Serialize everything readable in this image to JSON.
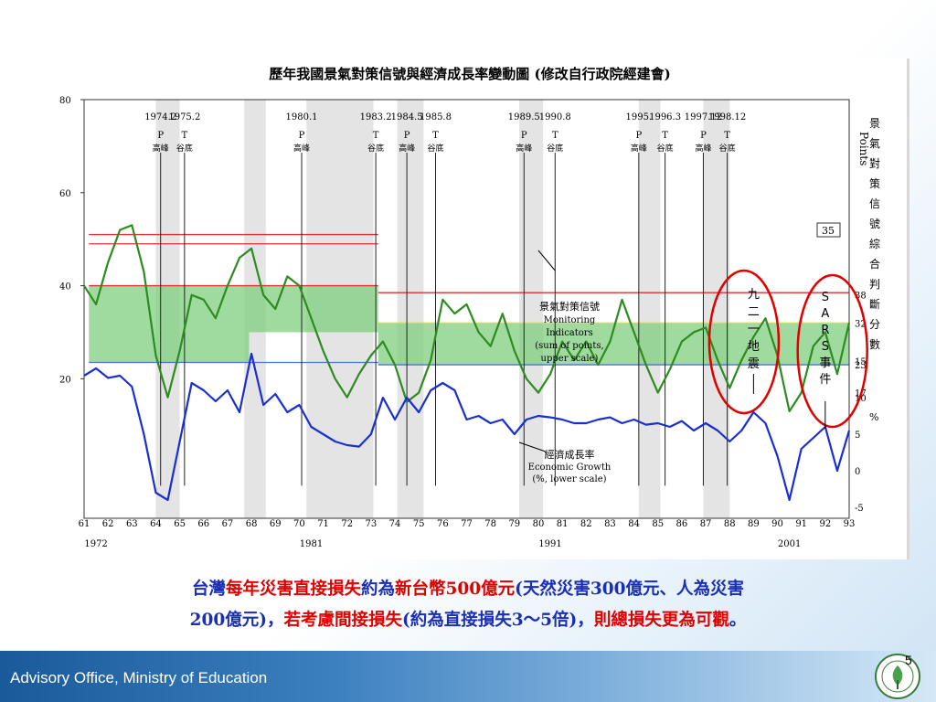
{
  "chart_data": {
    "type": "line",
    "title": "歷年我國景氣對策信號與經濟成長率變動圖",
    "title_note": "(修改自行政院經建會)",
    "x": [
      "61",
      "62",
      "63",
      "64",
      "65",
      "66",
      "67",
      "68",
      "69",
      "70",
      "71",
      "72",
      "73",
      "74",
      "75",
      "76",
      "77",
      "78",
      "79",
      "80",
      "81",
      "82",
      "83",
      "84",
      "85",
      "86",
      "87",
      "88",
      "89",
      "90",
      "91",
      "92",
      "93"
    ],
    "x_year_labels": [
      [
        "1972",
        61.5
      ],
      [
        "1981",
        70.5
      ],
      [
        "1991",
        80.5
      ],
      [
        "2001",
        90.5
      ]
    ],
    "left_axis_ticks": [
      "80",
      "60",
      "40",
      "20"
    ],
    "right_upper_ticks": [
      "38",
      "32",
      "23",
      "17"
    ],
    "right_lower_ticks": [
      "15",
      "10",
      "5",
      "0",
      "-5"
    ],
    "right_upper_label": "Points",
    "right_upper_vertical": "景氣對策信號綜合判斷分數",
    "right_lower_label": "%",
    "recessions": [
      [
        64.0,
        65.0
      ],
      [
        67.7,
        68.6
      ],
      [
        70.3,
        73.1
      ],
      [
        74.1,
        75.2
      ],
      [
        79.2,
        80.2
      ],
      [
        84.2,
        85.1
      ],
      [
        86.9,
        87.8
      ],
      [
        87.8,
        88.0
      ]
    ],
    "turning_points": [
      {
        "date": "1974.2",
        "type": "P",
        "label": "高峰",
        "x": 64.2
      },
      {
        "date": "1975.2",
        "type": "T",
        "label": "谷底",
        "x": 65.2
      },
      {
        "date": "1980.1",
        "type": "P",
        "label": "高峰",
        "x": 70.1
      },
      {
        "date": "1983.2",
        "type": "T",
        "label": "谷底",
        "x": 73.2
      },
      {
        "date": "1984.5",
        "type": "P",
        "label": "高峰",
        "x": 74.5
      },
      {
        "date": "1985.8",
        "type": "T",
        "label": "谷底",
        "x": 75.7
      },
      {
        "date": "1989.5",
        "type": "P",
        "label": "高峰",
        "x": 79.4
      },
      {
        "date": "1990.8",
        "type": "T",
        "label": "谷底",
        "x": 80.7
      },
      {
        "date": "1995.",
        "type": "P",
        "label": "高峰",
        "x": 84.2
      },
      {
        "date": "1996.3",
        "type": "T",
        "label": "谷底",
        "x": 85.3
      },
      {
        "date": "1997.12",
        "type": "P",
        "label": "高峰",
        "x": 86.9
      },
      {
        "date": "1998.12",
        "type": "T",
        "label": "谷底",
        "x": 87.9
      }
    ],
    "series": [
      {
        "name": "景氣對策信號 Monitoring Indicators (sum of points, upper scale)",
        "color": "#2e8b20",
        "points": [
          [
            61,
            40
          ],
          [
            61.5,
            36
          ],
          [
            62,
            45
          ],
          [
            62.5,
            52
          ],
          [
            63,
            53
          ],
          [
            63.5,
            43
          ],
          [
            64,
            25
          ],
          [
            64.5,
            16
          ],
          [
            65,
            26
          ],
          [
            65.5,
            38
          ],
          [
            66,
            37
          ],
          [
            66.5,
            33
          ],
          [
            67,
            40
          ],
          [
            67.5,
            46
          ],
          [
            68,
            48
          ],
          [
            68.5,
            38
          ],
          [
            69,
            35
          ],
          [
            69.5,
            42
          ],
          [
            70,
            40
          ],
          [
            70.5,
            33
          ],
          [
            71,
            26
          ],
          [
            71.5,
            20
          ],
          [
            72,
            16
          ],
          [
            72.5,
            21
          ],
          [
            73,
            25
          ],
          [
            73.5,
            28
          ],
          [
            74,
            23
          ],
          [
            74.5,
            15
          ],
          [
            75,
            17
          ],
          [
            75.5,
            24
          ],
          [
            76,
            37
          ],
          [
            76.5,
            34
          ],
          [
            77,
            36
          ],
          [
            77.5,
            30
          ],
          [
            78,
            27
          ],
          [
            78.5,
            34
          ],
          [
            79,
            26
          ],
          [
            79.5,
            20
          ],
          [
            80,
            17
          ],
          [
            80.5,
            21
          ],
          [
            81,
            28
          ],
          [
            81.5,
            24
          ],
          [
            82,
            28
          ],
          [
            82.5,
            23
          ],
          [
            83,
            28
          ],
          [
            83.5,
            37
          ],
          [
            84,
            30
          ],
          [
            84.5,
            23
          ],
          [
            85,
            17
          ],
          [
            85.5,
            22
          ],
          [
            86,
            28
          ],
          [
            86.5,
            30
          ],
          [
            87,
            31
          ],
          [
            87.5,
            24
          ],
          [
            88,
            18
          ],
          [
            88.5,
            24
          ],
          [
            89,
            29
          ],
          [
            89.5,
            33
          ],
          [
            90,
            25
          ],
          [
            90.5,
            13
          ],
          [
            91,
            17
          ],
          [
            91.5,
            27
          ],
          [
            92,
            30
          ],
          [
            92.5,
            21
          ],
          [
            93,
            32
          ]
        ]
      },
      {
        "name": "經濟成長率 Economic Growth (%, lower scale)",
        "color": "#1a2fd0",
        "points": [
          [
            61,
            13
          ],
          [
            61.5,
            14
          ],
          [
            62,
            12.7
          ],
          [
            62.5,
            13
          ],
          [
            63,
            11.5
          ],
          [
            63.5,
            5
          ],
          [
            64,
            -3
          ],
          [
            64.5,
            -4
          ],
          [
            65,
            4
          ],
          [
            65.5,
            12
          ],
          [
            66,
            11
          ],
          [
            66.5,
            9.5
          ],
          [
            67,
            11
          ],
          [
            67.5,
            8
          ],
          [
            68,
            16
          ],
          [
            68.5,
            9
          ],
          [
            69,
            10.5
          ],
          [
            69.5,
            8
          ],
          [
            70,
            9
          ],
          [
            70.5,
            6
          ],
          [
            71,
            5
          ],
          [
            71.5,
            4
          ],
          [
            72,
            3.5
          ],
          [
            72.5,
            3.3
          ],
          [
            73,
            5
          ],
          [
            73.5,
            10
          ],
          [
            74,
            7
          ],
          [
            74.5,
            10
          ],
          [
            75,
            8
          ],
          [
            75.5,
            11
          ],
          [
            76,
            12
          ],
          [
            76.5,
            11
          ],
          [
            77,
            7
          ],
          [
            77.5,
            7.5
          ],
          [
            78,
            6.5
          ],
          [
            78.5,
            7
          ],
          [
            79,
            5
          ],
          [
            79.5,
            7
          ],
          [
            80,
            7.5
          ],
          [
            80.5,
            7.3
          ],
          [
            81,
            7
          ],
          [
            81.5,
            6.5
          ],
          [
            82,
            6.5
          ],
          [
            82.5,
            7
          ],
          [
            83,
            7.3
          ],
          [
            83.5,
            6.5
          ],
          [
            84,
            7
          ],
          [
            84.5,
            6.3
          ],
          [
            85,
            6.5
          ],
          [
            85.5,
            6
          ],
          [
            86,
            6.8
          ],
          [
            86.5,
            5.5
          ],
          [
            87,
            6.5
          ],
          [
            87.5,
            5.5
          ],
          [
            88,
            4
          ],
          [
            88.5,
            5.5
          ],
          [
            89,
            8
          ],
          [
            89.5,
            6.5
          ],
          [
            90,
            2
          ],
          [
            90.5,
            -4
          ],
          [
            91,
            3
          ],
          [
            91.5,
            4.5
          ],
          [
            92,
            6
          ],
          [
            92.5,
            0
          ],
          [
            93,
            5.5
          ]
        ]
      }
    ],
    "threshold_lines": [
      {
        "color": "#e03030",
        "segments": [
          [
            [
              61.2,
              51
            ],
            [
              73.3,
              51
            ]
          ],
          [
            [
              61.2,
              49
            ],
            [
              73.3,
              49
            ]
          ],
          [
            [
              61.2,
              40
            ],
            [
              73.3,
              40
            ]
          ],
          [
            [
              73.3,
              38.5
            ],
            [
              93,
              38.5
            ]
          ]
        ]
      },
      {
        "color": "#e8e020",
        "segments": [
          [
            [
              73.3,
              32
            ],
            [
              93,
              32
            ]
          ]
        ]
      },
      {
        "color": "#4a6fe0",
        "segments": [
          [
            [
              61.2,
              23.5
            ],
            [
              73.3,
              23.5
            ]
          ],
          [
            [
              73.3,
              23
            ],
            [
              93,
              23
            ]
          ]
        ]
      }
    ],
    "bands": [
      {
        "color": "#7fcf7f",
        "x0": 61.2,
        "x1": 67.9,
        "y0": 23.5,
        "y1": 40
      },
      {
        "color": "#7fcf7f",
        "x0": 67.9,
        "x1": 73.3,
        "y0": 30,
        "y1": 40
      },
      {
        "color": "#7fcf7f",
        "x0": 73.3,
        "x1": 93,
        "y0": 23,
        "y1": 32
      }
    ],
    "ylim_upper": [
      -10,
      80
    ],
    "ylim_lower": [
      -5,
      15
    ],
    "value_box": "35",
    "annotation_monitoring": [
      "景氣對策信號",
      "Monitoring",
      "Indicators",
      "(sum of points,",
      "upper scale)"
    ],
    "annotation_growth": [
      "經濟成長率",
      "Economic Growth",
      "(%, lower scale)"
    ],
    "event_921": [
      "九",
      "二",
      "一",
      "地",
      "震"
    ],
    "event_sars": [
      "S",
      "A",
      "R",
      "S",
      "事",
      "件"
    ]
  },
  "caption": {
    "line1": [
      {
        "t": "台灣",
        "c": "blue"
      },
      {
        "t": "每年災害直接損失",
        "c": "red"
      },
      {
        "t": "約為",
        "c": "blue"
      },
      {
        "t": "新台幣500億元",
        "c": "red"
      },
      {
        "t": "(天然災害300億元、人為災害",
        "c": "blue"
      }
    ],
    "line2": [
      {
        "t": "200億元)，",
        "c": "blue"
      },
      {
        "t": "若考慮間接損失",
        "c": "red"
      },
      {
        "t": "(約為直接損失3～5倍)，",
        "c": "blue"
      },
      {
        "t": "則總損失更為可觀",
        "c": "red"
      },
      {
        "t": "。",
        "c": "blue"
      }
    ]
  },
  "footer": {
    "org": "Advisory Office, Ministry of Education",
    "page": "5"
  },
  "colors": {
    "blue_text": "#1a2fb5",
    "red_text": "#e00000",
    "circle": "#e00000"
  }
}
